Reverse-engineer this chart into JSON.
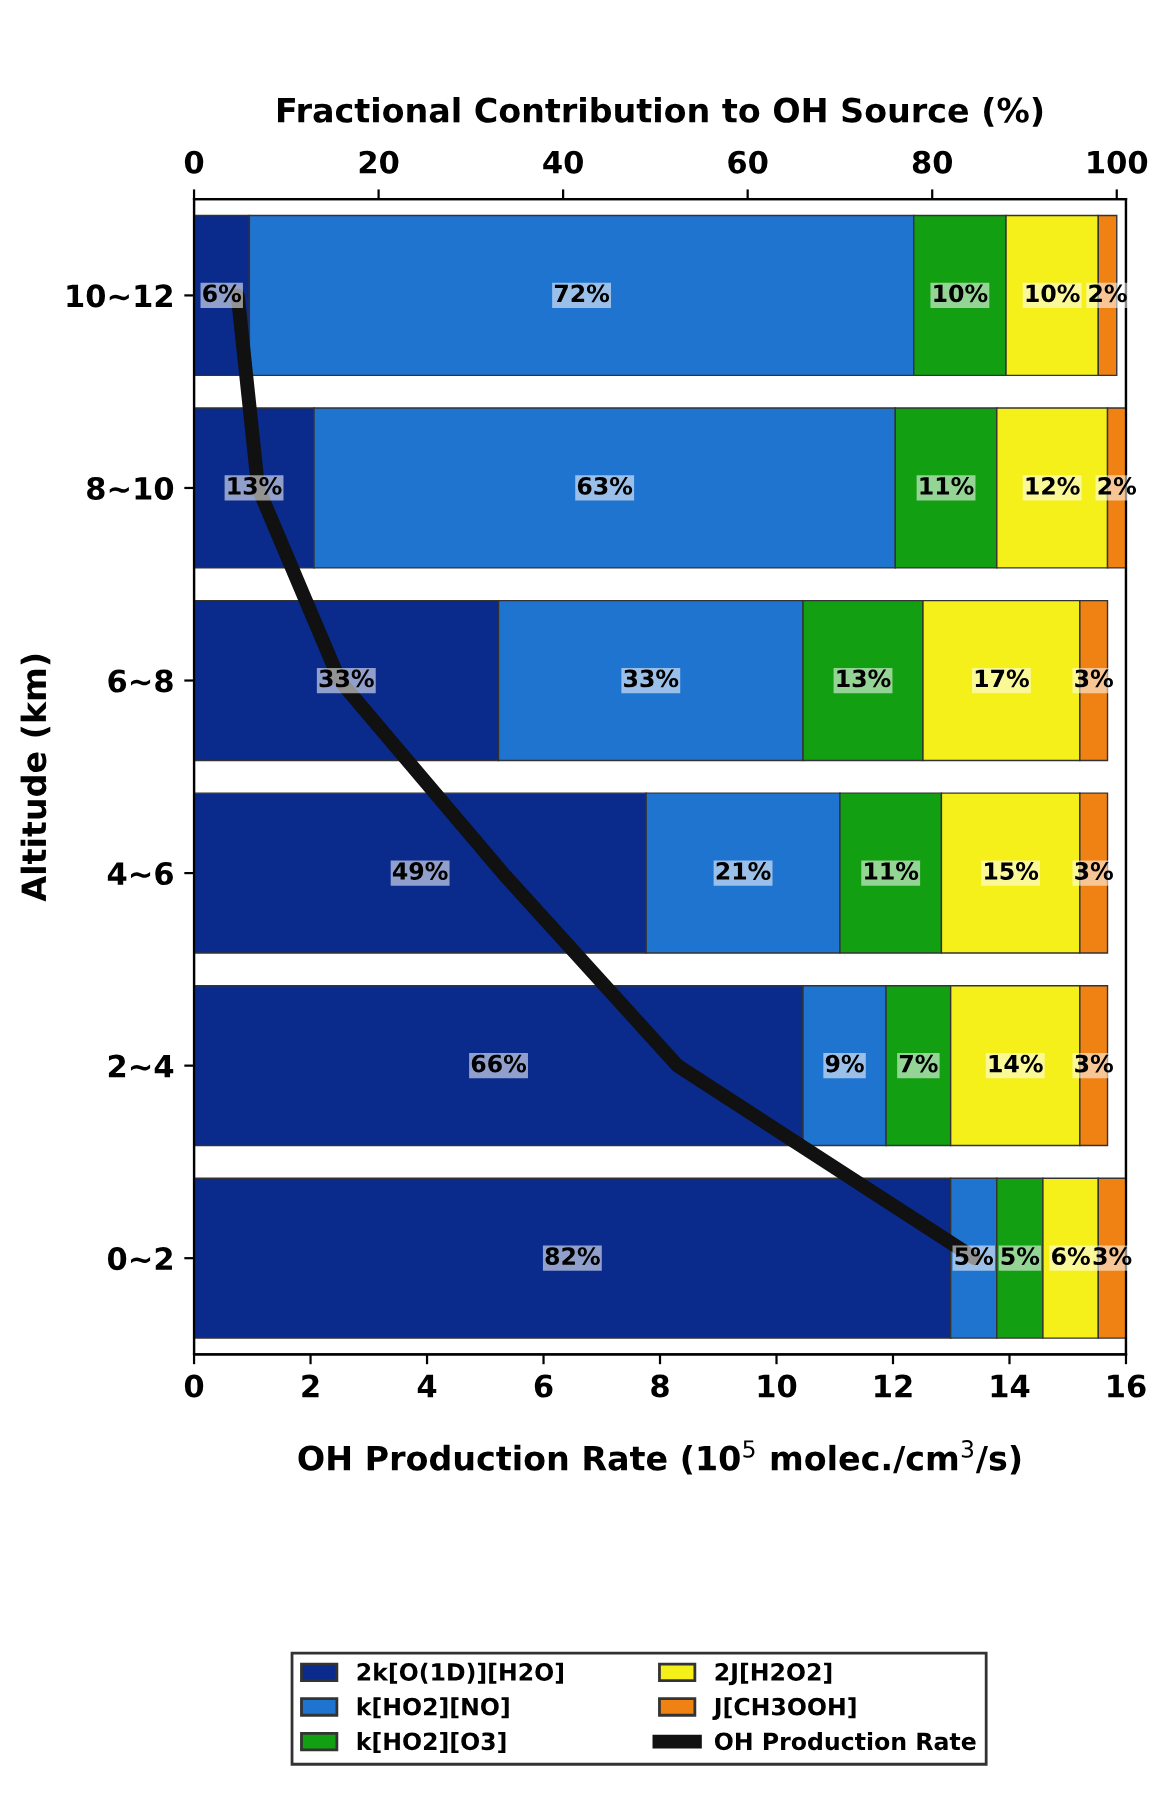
{
  "chart_data": {
    "type": "bar",
    "orientation": "horizontal",
    "stacked": true,
    "grid": false,
    "legend": "bottom",
    "xlabel": "Fractional Contribution to OH Source (%)",
    "x2label": "OH Production Rate (10$^{5}$ molec./cm$^{3}$/s)",
    "ylabel": "Altitude (km)",
    "categories": [
      "10~12",
      "8~10",
      "6~8",
      "4~6",
      "2~4",
      "0~2"
    ],
    "xlim": [
      0,
      101
    ],
    "xticks": [
      0,
      20,
      40,
      60,
      80,
      100
    ],
    "x2lim": [
      0,
      16
    ],
    "x2ticks": [
      0,
      2,
      4,
      6,
      8,
      10,
      12,
      14,
      16
    ],
    "series": [
      {
        "name": "2k[O(1D)][H2O]",
        "color": "#0a2a8c",
        "values": [
          6,
          13,
          33,
          49,
          66,
          82
        ],
        "value_labels": [
          "6%",
          "13%",
          "33%",
          "49%",
          "66%",
          "82%"
        ]
      },
      {
        "name": "k[HO2][NO]",
        "color": "#1f74d0",
        "values": [
          72,
          63,
          33,
          21,
          9,
          5
        ],
        "value_labels": [
          "72%",
          "63%",
          "33%",
          "21%",
          "9%",
          "5%"
        ]
      },
      {
        "name": "k[HO2][O3]",
        "color": "#12a012",
        "values": [
          10,
          11,
          13,
          11,
          7,
          5
        ],
        "value_labels": [
          "10%",
          "11%",
          "13%",
          "11%",
          "7%",
          "5%"
        ]
      },
      {
        "name": "2J[H2O2]",
        "color": "#f5f01a",
        "values": [
          10,
          12,
          17,
          15,
          14,
          6
        ],
        "value_labels": [
          "10%",
          "12%",
          "17%",
          "15%",
          "14%",
          "6%"
        ]
      },
      {
        "name": "J[CH3OOH]",
        "color": "#f08214",
        "values": [
          2,
          2,
          3,
          3,
          3,
          3
        ],
        "value_labels": [
          "2%",
          "2%",
          "3%",
          "3%",
          "3%",
          "3%"
        ]
      },
      {
        "name": "OH Production Rate",
        "type": "line",
        "color": "#111111",
        "axis": "x2",
        "values": [
          0.75,
          1.1,
          2.5,
          5.3,
          8.3,
          13.4
        ]
      }
    ]
  }
}
